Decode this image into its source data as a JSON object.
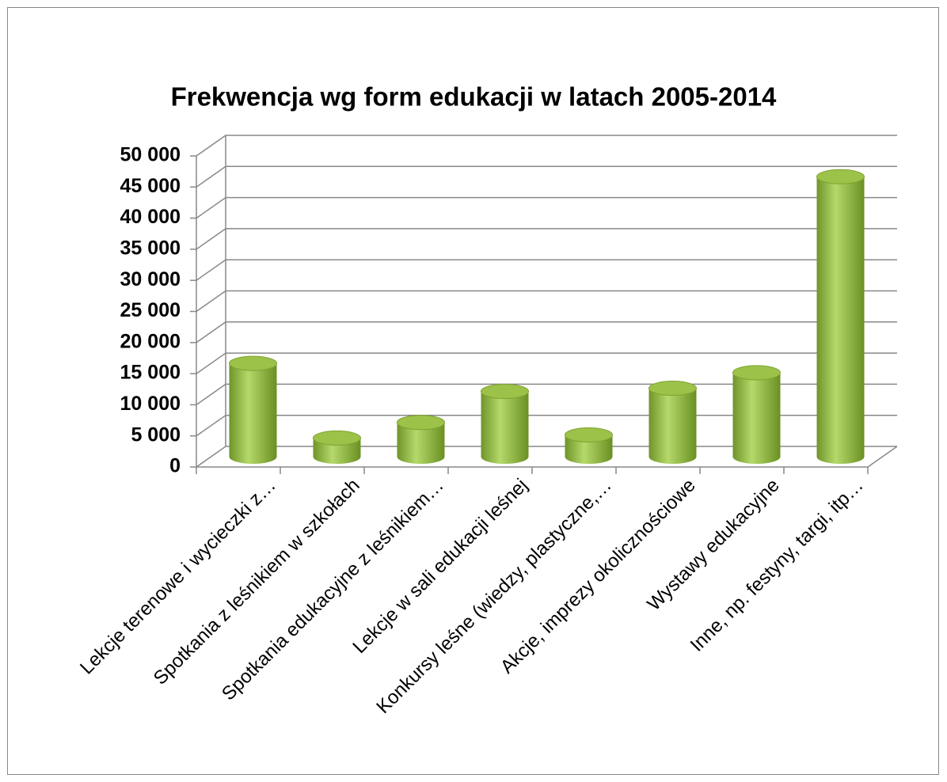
{
  "chart_data": {
    "type": "bar3d",
    "title": "Frekwencja wg form edukacji w latach 2005-2014",
    "categories": [
      "Lekcje terenowe i wycieczki z…",
      "Spotkania z leśnikiem w szkołach",
      "Spotkania edukacyjne z leśnikiem…",
      "Lekcje w sali edukacji leśnej",
      "Konkursy leśne (wiedzy, plastyczne,…",
      "Akcje, imprezy okolicznościowe",
      "Wystawy edukacyjne",
      "Inne, np. festyny, targi, itp…"
    ],
    "values": [
      15000,
      3000,
      5500,
      10500,
      3500,
      11000,
      13500,
      45000
    ],
    "color": "#8db33a",
    "ylim": [
      0,
      50000
    ],
    "yticks": [
      {
        "value": 0,
        "label": "0"
      },
      {
        "value": 5000,
        "label": "5 000"
      },
      {
        "value": 10000,
        "label": "10 000"
      },
      {
        "value": 15000,
        "label": "15 000"
      },
      {
        "value": 20000,
        "label": "20 000"
      },
      {
        "value": 25000,
        "label": "25 000"
      },
      {
        "value": 30000,
        "label": "30 000"
      },
      {
        "value": 35000,
        "label": "35 000"
      },
      {
        "value": 40000,
        "label": "40 000"
      },
      {
        "value": 45000,
        "label": "45 000"
      },
      {
        "value": 50000,
        "label": "50 000"
      }
    ],
    "grid": true
  }
}
